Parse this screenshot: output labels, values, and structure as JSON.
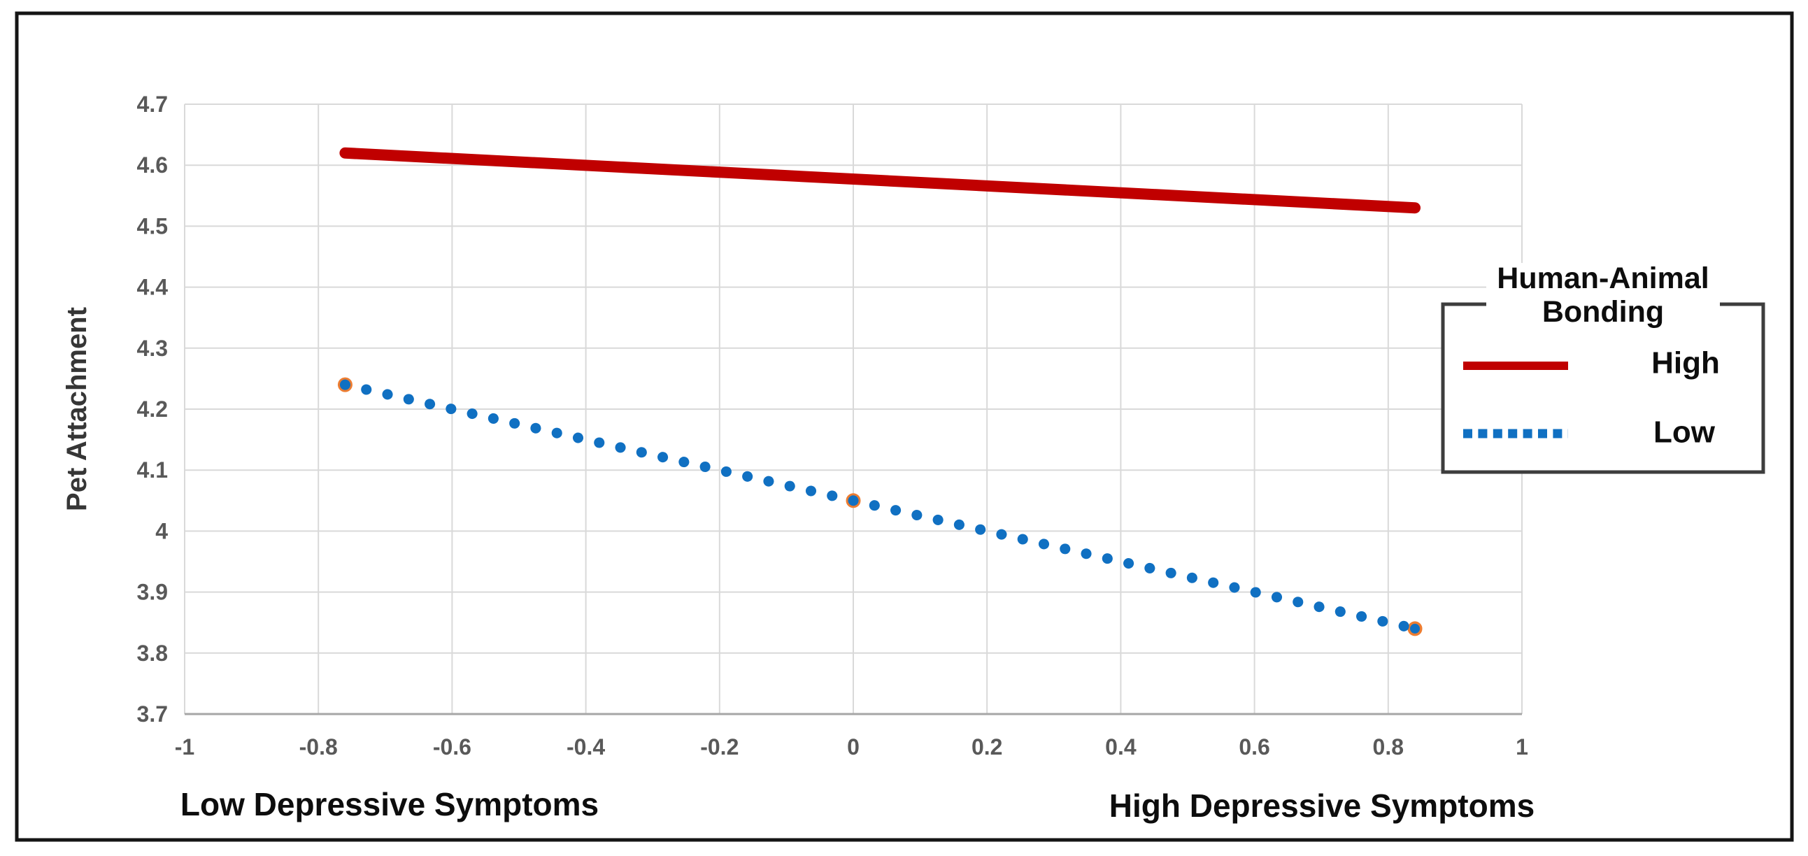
{
  "chart_data": {
    "type": "line",
    "title": "",
    "x_axis": {
      "left_label": "Low Depressive Symptoms",
      "right_label": "High Depressive Symptoms",
      "min": -1,
      "max": 1,
      "ticks": [
        {
          "label": "-1",
          "value": -1
        },
        {
          "label": "-0.8",
          "value": -0.8
        },
        {
          "label": "-0.6",
          "value": -0.6
        },
        {
          "label": "-0.4",
          "value": -0.4
        },
        {
          "label": "-0.2",
          "value": -0.2
        },
        {
          "label": "0",
          "value": 0
        },
        {
          "label": "0.2",
          "value": 0.2
        },
        {
          "label": "0.4",
          "value": 0.4
        },
        {
          "label": "0.6",
          "value": 0.6
        },
        {
          "label": "0.8",
          "value": 0.8
        },
        {
          "label": "1",
          "value": 1
        }
      ]
    },
    "y_axis": {
      "label": "Pet Attachment",
      "min": 3.7,
      "max": 4.7,
      "ticks": [
        {
          "label": "3.7",
          "value": 3.7
        },
        {
          "label": "3.8",
          "value": 3.8
        },
        {
          "label": "3.9",
          "value": 3.9
        },
        {
          "label": "4",
          "value": 4
        },
        {
          "label": "4.1",
          "value": 4.1
        },
        {
          "label": "4.2",
          "value": 4.2
        },
        {
          "label": "4.3",
          "value": 4.3
        },
        {
          "label": "4.4",
          "value": 4.4
        },
        {
          "label": "4.5",
          "value": 4.5
        },
        {
          "label": "4.6",
          "value": 4.6
        },
        {
          "label": "4.7",
          "value": 4.7
        }
      ]
    },
    "legend": {
      "title_lines": [
        "Human-Animal",
        "Bonding"
      ],
      "position": "right"
    },
    "series": [
      {
        "name": "High",
        "color": "#C00000",
        "style": "solid",
        "line_width": 16,
        "points": [
          [
            -0.76,
            4.62
          ],
          [
            0.84,
            4.53
          ]
        ]
      },
      {
        "name": "Low",
        "color": "#1070C2",
        "style": "dotted",
        "line_width": 15,
        "points": [
          [
            -0.76,
            4.24
          ],
          [
            0,
            4.05
          ],
          [
            0.84,
            3.84
          ]
        ],
        "highlight_marker_color": "#ED7D31",
        "highlight_points": [
          [
            -0.76,
            4.24
          ],
          [
            0,
            4.05
          ],
          [
            0.84,
            3.84
          ]
        ]
      }
    ],
    "grid": {
      "grid_on": true,
      "gridline_color": "#D9D9D9",
      "axis_line_color": "#A6A6A6"
    }
  }
}
